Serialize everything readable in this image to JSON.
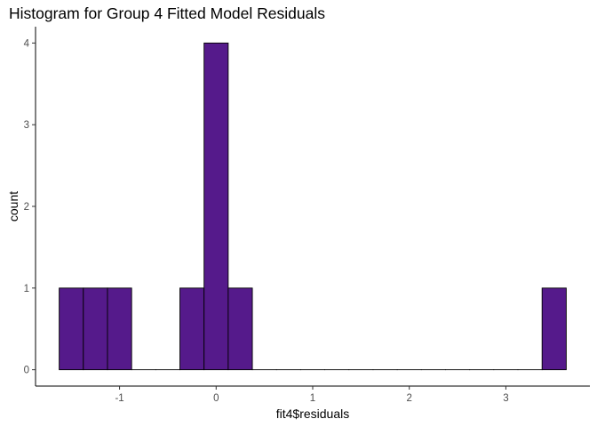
{
  "chart_data": {
    "type": "bar",
    "title": "Histogram for Group 4 Fitted Model Residuals",
    "xlabel": "fit4$residuals",
    "ylabel": "count",
    "bin_width": 0.25,
    "bins": [
      {
        "x_start": -1.625,
        "x_end": -1.375,
        "count": 1
      },
      {
        "x_start": -1.375,
        "x_end": -1.125,
        "count": 1
      },
      {
        "x_start": -1.125,
        "x_end": -0.875,
        "count": 1
      },
      {
        "x_start": -0.875,
        "x_end": -0.625,
        "count": 0
      },
      {
        "x_start": -0.625,
        "x_end": -0.375,
        "count": 0
      },
      {
        "x_start": -0.375,
        "x_end": -0.125,
        "count": 1
      },
      {
        "x_start": -0.125,
        "x_end": 0.125,
        "count": 4
      },
      {
        "x_start": 0.125,
        "x_end": 0.375,
        "count": 1
      },
      {
        "x_start": 0.375,
        "x_end": 0.625,
        "count": 0
      },
      {
        "x_start": 0.625,
        "x_end": 0.875,
        "count": 0
      },
      {
        "x_start": 0.875,
        "x_end": 1.125,
        "count": 0
      },
      {
        "x_start": 1.125,
        "x_end": 1.375,
        "count": 0
      },
      {
        "x_start": 1.375,
        "x_end": 1.625,
        "count": 0
      },
      {
        "x_start": 1.625,
        "x_end": 1.875,
        "count": 0
      },
      {
        "x_start": 1.875,
        "x_end": 2.125,
        "count": 0
      },
      {
        "x_start": 2.125,
        "x_end": 2.375,
        "count": 0
      },
      {
        "x_start": 2.375,
        "x_end": 2.625,
        "count": 0
      },
      {
        "x_start": 2.625,
        "x_end": 2.875,
        "count": 0
      },
      {
        "x_start": 2.875,
        "x_end": 3.125,
        "count": 0
      },
      {
        "x_start": 3.125,
        "x_end": 3.375,
        "count": 0
      },
      {
        "x_start": 3.375,
        "x_end": 3.625,
        "count": 1
      }
    ],
    "x_ticks": [
      -1,
      0,
      1,
      2,
      3
    ],
    "x_tick_labels": [
      "-1",
      "0",
      "1",
      "2",
      "3"
    ],
    "y_ticks": [
      0,
      1,
      2,
      3,
      4
    ],
    "y_tick_labels": [
      "0",
      "1",
      "2",
      "3",
      "4"
    ],
    "xlim": [
      -1.87,
      3.87
    ],
    "ylim": [
      -0.2,
      4.2
    ],
    "grid": false,
    "legend": "none",
    "colors": {
      "fill": "#551A8B",
      "outline": "#000000",
      "axis": "#000000",
      "tick_label": "#4D4D4D"
    }
  }
}
